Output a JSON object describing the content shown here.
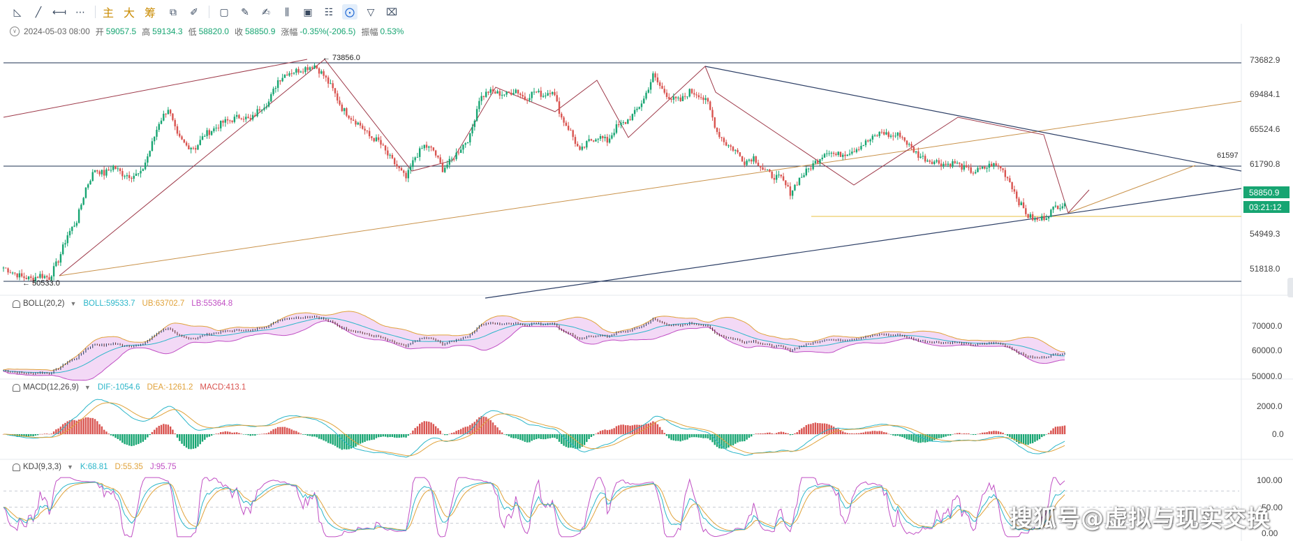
{
  "toolbar": {
    "items": [
      "trend-angle-icon",
      "trend-line-icon",
      "horizontal-ray-icon",
      "more-dots-icon"
    ],
    "cn_buttons": [
      "主",
      "大",
      "筹"
    ],
    "tools": [
      "copy-icon",
      "eraser-icon",
      "ruler-icon",
      "pen-icon",
      "candles-icon",
      "lock-icon",
      "note-icon",
      "magnet-icon",
      "filter-icon",
      "trash-icon"
    ]
  },
  "info": {
    "date": "2024-05-03 08:00",
    "open_label": "开",
    "open": "59057.5",
    "high_label": "高",
    "high": "59134.3",
    "low_label": "低",
    "low": "58820.0",
    "close_label": "收",
    "close": "58850.9",
    "change_label": "涨幅",
    "change": "-0.35%(-206.5)",
    "amp_label": "振幅",
    "amp": "0.53%"
  },
  "price_axis": {
    "ticks": [
      "73682.9",
      "69484.1",
      "65524.6",
      "61790.8",
      "54949.3",
      "51818.0"
    ],
    "current_price": "58850.9",
    "countdown": "03:21:12",
    "level_61597": "61597"
  },
  "annotations": {
    "high_marker": "← 73856.0",
    "low_marker": "← 50533.0"
  },
  "boll": {
    "name": "BOLL(20,2)",
    "boll_label": "BOLL:59533.7",
    "ub_label": "UB:63702.7",
    "lb_label": "LB:55364.8",
    "ticks": [
      "70000.0",
      "60000.0",
      "50000.0"
    ]
  },
  "macd": {
    "name": "MACD(12,26,9)",
    "dif_label": "DIF:-1054.6",
    "dea_label": "DEA:-1261.2",
    "macd_label": "MACD:413.1",
    "ticks": [
      "2000.0",
      "0.0"
    ]
  },
  "kdj": {
    "name": "KDJ(9,3,3)",
    "k_label": "K:68.81",
    "d_label": "D:55.35",
    "j_label": "J:95.75",
    "ticks": [
      "100.00",
      "50.00",
      "0.00"
    ]
  },
  "colors": {
    "up": "#17a572",
    "down": "#d9534f",
    "dif": "#2bb6c9",
    "dea": "#e0a23a",
    "macd_label": "#d9534f",
    "k": "#2bb6c9",
    "d": "#e0a23a",
    "j": "#c04fc4",
    "accent": "#2a6fd6",
    "price_badge": "#17a572"
  },
  "watermark": "搜狐号@虚拟与现实交换",
  "chart_data": {
    "type": "candlestick",
    "price_ylim": [
      50533,
      73856
    ],
    "close_path": [
      52000,
      51500,
      51000,
      50800,
      51200,
      50900,
      52800,
      55500,
      57000,
      60500,
      62500,
      62000,
      62800,
      62000,
      61800,
      62000,
      64500,
      67500,
      69000,
      66000,
      65000,
      64800,
      66200,
      66800,
      67500,
      67800,
      68200,
      67700,
      69000,
      69700,
      72000,
      72800,
      73000,
      73300,
      73600,
      72500,
      71000,
      69000,
      68000,
      67200,
      66000,
      65500,
      64000,
      62800,
      61500,
      63800,
      65000,
      64500,
      62500,
      63500,
      64800,
      66000,
      70000,
      70800,
      70600,
      70500,
      71000,
      70000,
      70800,
      70400,
      71000,
      68000,
      66500,
      64300,
      65500,
      66000,
      65500,
      67000,
      67500,
      68500,
      70000,
      72500,
      71000,
      70000,
      69800,
      70800,
      70500,
      69500,
      66500,
      65200,
      64500,
      63300,
      63800,
      62500,
      61800,
      61500,
      60000,
      61500,
      62500,
      63500,
      64500,
      64000,
      64200,
      64600,
      65200,
      65800,
      66500,
      66000,
      66200,
      65000,
      64000,
      63500,
      63300,
      63000,
      63200,
      62600,
      62200,
      62500,
      63000,
      62700,
      61200,
      59000,
      57500,
      57000,
      57500,
      58500,
      58850.9
    ],
    "boll_ylim": [
      50000,
      70000
    ],
    "macd_ylim": [
      -2000,
      2000
    ],
    "kdj_ylim": [
      0,
      100
    ]
  }
}
